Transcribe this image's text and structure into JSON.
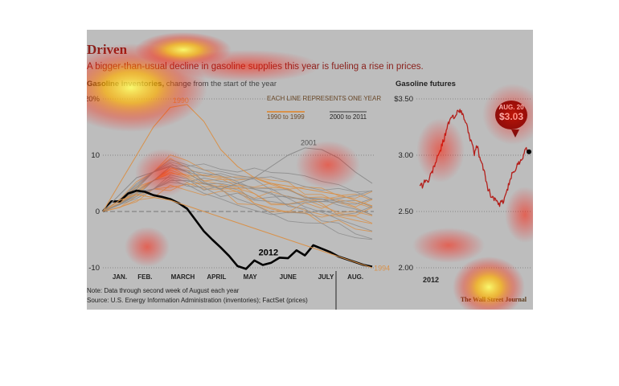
{
  "headline": "Driven",
  "subhead": "A bigger-than-usual decline in gasoline supplies this year is fueling a rise in prices.",
  "left_title_bold": "Gasoline inventories,",
  "left_title_light": "change from the start of the year",
  "right_title": "Gasoline futures",
  "legend_note": "EACH LINE REPRESENTS ONE YEAR",
  "legend_a": "1990 to 1999",
  "legend_b": "2000 to 2011",
  "note": "Note: Data through second week of August each year",
  "source": "Source: U.S. Energy Information Administration (inventories); FactSet (prices)",
  "credit": "The Wall Street Journal",
  "callout_date": "AUG. 20",
  "callout_value": "$3.03",
  "colors": {
    "background": "#bdbdbd",
    "headline": "#8a1f1a",
    "series_1990s": "#d8914a",
    "series_2000s": "#8c8c8c",
    "series_2012": "#000000",
    "futures": "#b3201c",
    "callout": "#6a0e0e"
  },
  "chart_data": [
    {
      "type": "line",
      "title": "Gasoline inventories, change from the start of the year",
      "ylim": [
        -10,
        20
      ],
      "yticks": [
        20,
        10,
        0,
        -10
      ],
      "ytick_labels": [
        "20%",
        "10",
        "0",
        "-10"
      ],
      "xlim": [
        0,
        32
      ],
      "xticks": [
        2,
        5,
        9.5,
        13.5,
        17.5,
        22,
        26.5,
        30
      ],
      "xtick_labels": [
        "JAN.",
        "FEB.",
        "MARCH",
        "APRIL",
        "MAY",
        "JUNE",
        "JULY",
        "AUG."
      ],
      "series": [
        {
          "name": "2012",
          "x": [
            0,
            1,
            2,
            3,
            4,
            5,
            6,
            7,
            8,
            9,
            10,
            11,
            12,
            13,
            14,
            15,
            16,
            17,
            18,
            19,
            20,
            21,
            22,
            23,
            24,
            25,
            26,
            27,
            28,
            29,
            30,
            31,
            32
          ],
          "values": [
            0,
            1.8,
            1.8,
            3.2,
            3.7,
            3.5,
            2.9,
            2.6,
            2.2,
            1.5,
            0.5,
            -1.5,
            -3.5,
            -5,
            -6.4,
            -7.9,
            -9.7,
            -10.2,
            -8.7,
            -9.5,
            -9.1,
            -8.2,
            -8.3,
            -6.9,
            -7.8,
            -6,
            -6.6,
            -7.2,
            -8,
            -8.5,
            -9,
            -9.5,
            -9.8
          ]
        },
        {
          "name": "1990",
          "x": [
            0,
            2,
            4,
            6,
            8,
            10,
            12,
            14,
            16,
            18,
            20,
            22,
            24,
            26,
            28,
            30,
            32
          ],
          "values": [
            0,
            5,
            10,
            15,
            18.5,
            19,
            16,
            11,
            8,
            6,
            5,
            4.5,
            4,
            3.5,
            3,
            2,
            1
          ]
        },
        {
          "name": "2001",
          "x": [
            0,
            2,
            4,
            6,
            8,
            10,
            12,
            14,
            16,
            18,
            20,
            22,
            24,
            26,
            28,
            30,
            32
          ],
          "values": [
            0,
            3,
            6,
            7,
            8,
            7,
            5,
            4,
            5,
            6,
            8,
            10,
            11.3,
            11,
            9.5,
            7,
            5
          ]
        },
        {
          "name": "1994",
          "x": [
            0,
            2,
            4,
            6,
            8,
            10,
            12,
            14,
            16,
            18,
            20,
            22,
            24,
            26,
            28,
            30,
            32
          ],
          "values": [
            0,
            2,
            3,
            2.5,
            2,
            1,
            0,
            -1,
            -2,
            -3,
            -4,
            -5,
            -6,
            -7,
            -8,
            -9,
            -10
          ]
        }
      ],
      "annotations": [
        "1990",
        "2001",
        "2012",
        "1994"
      ]
    },
    {
      "type": "line",
      "title": "Gasoline futures",
      "ylim": [
        2.0,
        3.5
      ],
      "yticks": [
        3.5,
        3.0,
        2.5,
        2.0
      ],
      "ytick_labels": [
        "$3.50",
        "3.00",
        "2.50",
        "2.00"
      ],
      "xtick_labels": [
        "2012"
      ],
      "series": [
        {
          "name": "Gasoline futures",
          "x": [
            0,
            1,
            2,
            3,
            4,
            5,
            6,
            7,
            8,
            9,
            10,
            11,
            12,
            13,
            14,
            15,
            16,
            17,
            18,
            19,
            20,
            21,
            22,
            23,
            24,
            25,
            26,
            27,
            28,
            29,
            30,
            31,
            32,
            33,
            34,
            35,
            36,
            37,
            38,
            39,
            40
          ],
          "values": [
            2.75,
            2.73,
            2.78,
            2.76,
            2.82,
            2.88,
            2.95,
            3.0,
            3.08,
            3.15,
            3.25,
            3.3,
            3.35,
            3.32,
            3.42,
            3.38,
            3.35,
            3.28,
            3.2,
            3.1,
            3.02,
            3.08,
            2.98,
            2.9,
            2.82,
            2.7,
            2.65,
            2.62,
            2.6,
            2.55,
            2.58,
            2.6,
            2.7,
            2.75,
            2.85,
            2.88,
            2.92,
            2.96,
            3.0,
            3.06,
            3.03
          ]
        }
      ]
    }
  ]
}
